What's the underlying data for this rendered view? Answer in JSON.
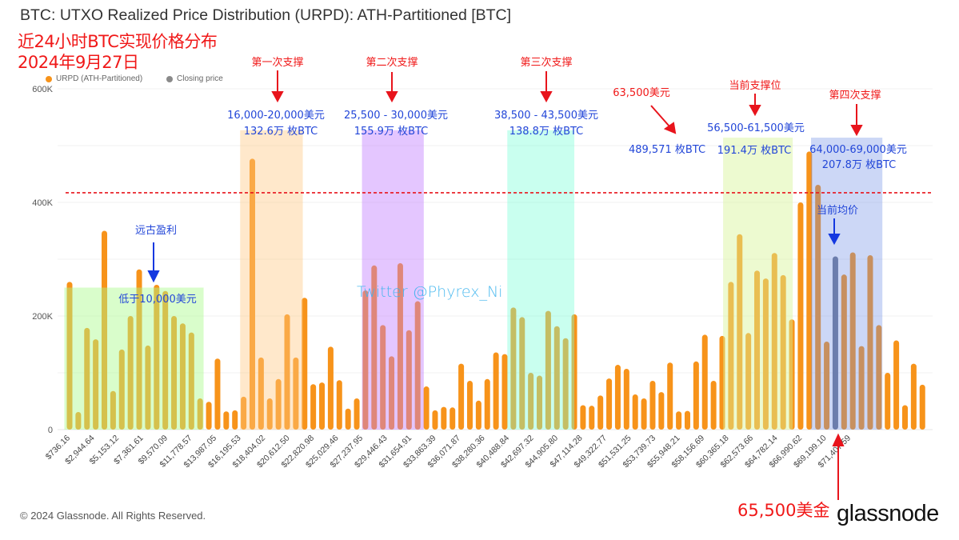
{
  "chart_data": {
    "type": "bar",
    "title": "BTC: UTXO Realized Price Distribution (URPD): ATH-Partitioned [BTC]",
    "xlabel": "",
    "ylabel": "",
    "ylim": [
      0,
      600000
    ],
    "y_ticks": [
      "0",
      "200K",
      "400K",
      "600K"
    ],
    "y_tick_values": [
      0,
      200000,
      400000,
      600000
    ],
    "grid": "horizontal",
    "legend_position": "top-left",
    "legend": [
      {
        "label": "URPD (ATH-Partitioned)",
        "color": "#f7931a"
      },
      {
        "label": "Closing price",
        "color": "#8a8a8a"
      }
    ],
    "x_tick_labels": [
      "$736.16",
      "$2,944.64",
      "$5,153.12",
      "$7,361.61",
      "$9,570.09",
      "$11,778.57",
      "$13,987.05",
      "$16,195.53",
      "$18,404.02",
      "$20,612.50",
      "$22,820.98",
      "$25,029.46",
      "$27,237.95",
      "$29,446.43",
      "$31,654.91",
      "$33,863.39",
      "$36,071.87",
      "$38,280.36",
      "$40,488.84",
      "$42,697.32",
      "$44,905.80",
      "$47,114.28",
      "$49,322.77",
      "$51,531.25",
      "$53,739.73",
      "$55,948.21",
      "$58,156.69",
      "$60,365.18",
      "$62,573.66",
      "$64,782.14",
      "$66,990.62",
      "$69,199.10",
      "$71,407.59"
    ],
    "bucket_size_usd": 736.16,
    "values": [
      260000,
      31000,
      179000,
      159000,
      350000,
      68000,
      141000,
      200000,
      282000,
      148000,
      255000,
      244000,
      200000,
      187000,
      171000,
      55000,
      49000,
      125000,
      32000,
      34000,
      58000,
      477000,
      127000,
      55000,
      89000,
      203000,
      127000,
      232000,
      80000,
      83000,
      146000,
      87000,
      37000,
      55000,
      245000,
      289000,
      184000,
      129000,
      293000,
      175000,
      226000,
      76000,
      34000,
      40000,
      39000,
      116000,
      86000,
      51000,
      89000,
      136000,
      133000,
      215000,
      198000,
      100000,
      95000,
      209000,
      182000,
      161000,
      203000,
      43000,
      42000,
      60000,
      90000,
      114000,
      107000,
      62000,
      55000,
      86000,
      66000,
      118000,
      32000,
      33000,
      120000,
      167000,
      86000,
      165000,
      260000,
      344000,
      170000,
      280000,
      266000,
      311000,
      272000,
      194000,
      400000,
      489571,
      431000,
      155000,
      305000,
      273000,
      312000,
      147000,
      307000,
      184000,
      100000,
      157000,
      43000,
      116000,
      79000
    ],
    "closing_price_bucket": 88,
    "bar_color": "#f7931a",
    "closing_bar_color": "#6b7590",
    "reference_line": {
      "value": 417000,
      "color": "#e8141c",
      "style": "dashed"
    },
    "bands": [
      {
        "from_bucket": -0.6,
        "to_bucket": 15.4,
        "top_value": 250000,
        "color": "rgba(170,250,140,0.45)"
      },
      {
        "from_bucket": 19.6,
        "to_bucket": 26.8,
        "top_value": 527000,
        "color": "rgba(255,200,130,0.42)"
      },
      {
        "from_bucket": 33.6,
        "to_bucket": 40.7,
        "top_value": 527000,
        "color": "rgba(190,120,255,0.42)"
      },
      {
        "from_bucket": 50.3,
        "to_bucket": 58.0,
        "top_value": 527000,
        "color": "rgba(120,255,215,0.4)"
      },
      {
        "from_bucket": 75.1,
        "to_bucket": 83.1,
        "top_value": 514000,
        "color": "rgba(215,245,150,0.45)"
      },
      {
        "from_bucket": 85.2,
        "to_bucket": 93.4,
        "top_value": 514000,
        "color": "rgba(110,140,230,0.35)"
      }
    ]
  },
  "overlay": {
    "heading_line1": "近24小时BTC实现价格分布",
    "heading_line2": "2024年9月27日",
    "support1": {
      "title": "第一次支撑",
      "range": "16,000-20,000美元",
      "amount": "132.6万 枚BTC"
    },
    "support2": {
      "title": "第二次支撑",
      "range": "25,500 - 30,000美元",
      "amount": "155.9万 枚BTC"
    },
    "support3": {
      "title": "第三次支撑",
      "range": "38,500 - 43,500美元",
      "amount": "138.8万 枚BTC"
    },
    "peak": {
      "title": "63,500美元",
      "amount": "489,571 枚BTC"
    },
    "current_support": {
      "title": "当前支撑位",
      "range": "56,500-61,500美元",
      "amount": "191.4万 枚BTC"
    },
    "support4": {
      "title": "第四次支撑",
      "range": "64,000-69,000美元",
      "amount": "207.8万 枚BTC"
    },
    "ancient": {
      "title": "远古盈利",
      "range": "低于10,000美元"
    },
    "current_avg": "当前均价",
    "closing_note": "65,500美金",
    "watermark": "Twitter @Phyrex_Ni"
  },
  "footer": {
    "copyright": "© 2024 Glassnode. All Rights Reserved.",
    "logo": "glassnode"
  }
}
